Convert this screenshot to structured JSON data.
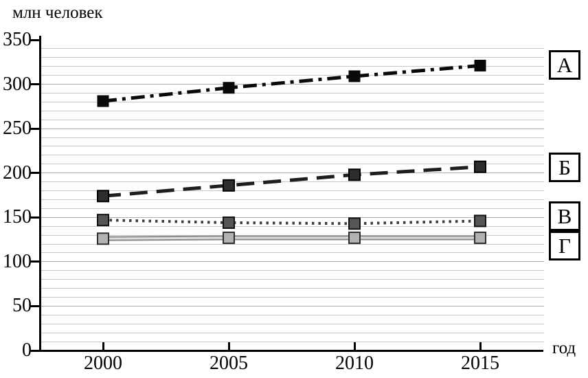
{
  "axes": {
    "y_unit": "млн человек",
    "x_unit": "год",
    "y_ticks": [
      0,
      50,
      100,
      150,
      200,
      250,
      300,
      350
    ],
    "x_ticks": [
      2000,
      2005,
      2010,
      2015
    ],
    "ylim": [
      0,
      350
    ],
    "grid_step": 10
  },
  "legend": {
    "items": [
      "А",
      "Б",
      "В",
      "Г"
    ]
  },
  "chart_data": {
    "type": "line",
    "title": "млн человек",
    "xlabel": "год",
    "ylabel": "млн человек",
    "x": [
      2000,
      2005,
      2010,
      2015
    ],
    "ylim": [
      0,
      350
    ],
    "grid": true,
    "legend_position": "right",
    "series": [
      {
        "name": "А",
        "values": [
          281,
          296,
          309,
          321
        ],
        "line_style": "dashdot",
        "color": "#0a0a0a",
        "marker": "square",
        "marker_fill": "#0a0a0a",
        "marker_border": "#0a0a0a"
      },
      {
        "name": "Б",
        "values": [
          174,
          186,
          198,
          207
        ],
        "line_style": "dashed",
        "color": "#1e1e1e",
        "marker": "square",
        "marker_fill": "#2d2d2d",
        "marker_border": "#000000"
      },
      {
        "name": "В",
        "values": [
          147,
          144,
          143,
          146
        ],
        "line_style": "dotted",
        "color": "#3c3c3c",
        "marker": "square",
        "marker_fill": "#565656",
        "marker_border": "#111111"
      },
      {
        "name": "Г",
        "values": [
          126,
          127,
          127,
          127
        ],
        "line_style": "double",
        "color": "#8a8a8a",
        "marker": "square",
        "marker_fill": "#b2b2b2",
        "marker_border": "#2e2e2e"
      }
    ]
  }
}
